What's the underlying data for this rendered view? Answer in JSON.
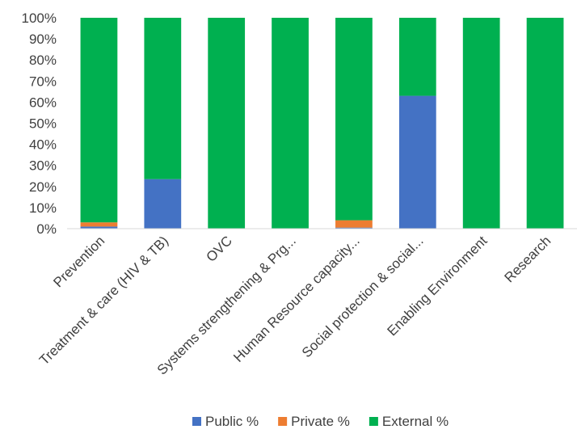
{
  "chart_data": {
    "type": "bar",
    "stacked": true,
    "percent_stacked": true,
    "categories": [
      "Prevention",
      "Treatment & care (HIV & TB)",
      "OVC",
      "Systems strengthening & Prg...",
      "Human Resource capacity...",
      "Social protection & social...",
      "Enabling Environment",
      "Research"
    ],
    "series": [
      {
        "name": "Public %",
        "color": "#4472C4",
        "values": [
          1,
          23.5,
          0,
          0,
          0.5,
          63,
          0,
          0
        ]
      },
      {
        "name": "Private %",
        "color": "#ED7D31",
        "values": [
          2,
          0,
          0,
          0,
          3.5,
          0,
          0,
          0
        ]
      },
      {
        "name": "External %",
        "color": "#00B050",
        "values": [
          97,
          76.5,
          100,
          100,
          96,
          37,
          100,
          100
        ]
      }
    ],
    "ylim": [
      0,
      100
    ],
    "yticks": [
      "0%",
      "10%",
      "20%",
      "30%",
      "40%",
      "50%",
      "60%",
      "70%",
      "80%",
      "90%",
      "100%"
    ],
    "title": "",
    "xlabel": "",
    "ylabel": "",
    "grid": false,
    "legend_position": "bottom"
  }
}
